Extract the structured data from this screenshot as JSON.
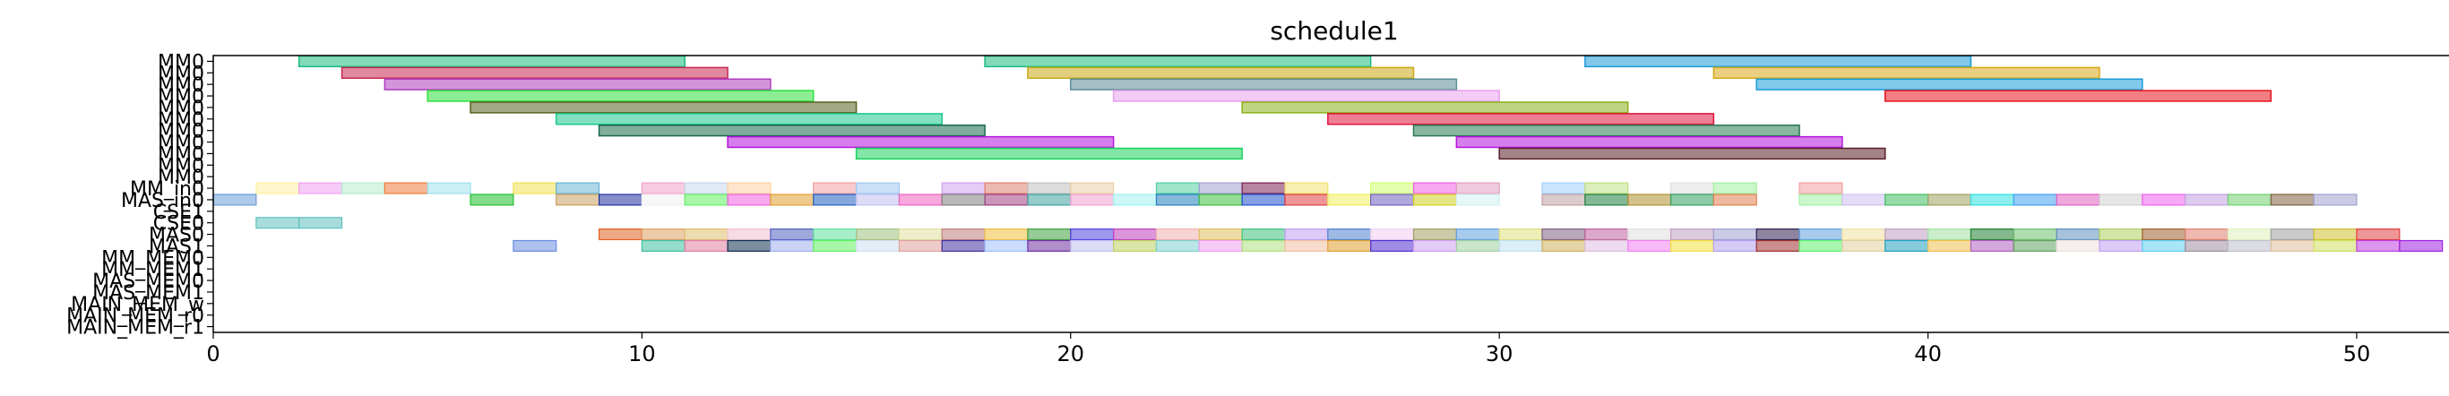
{
  "chart_data": {
    "type": "gantt",
    "title": "schedule1",
    "xlabel": "",
    "ylabel": "",
    "xlim": [
      0,
      52.3
    ],
    "x_ticks": [
      0,
      10,
      20,
      30,
      40,
      50
    ],
    "grid": false,
    "lanes": [
      "MM0",
      "MM0",
      "MM0",
      "MM0",
      "MM0",
      "MM0",
      "MM0",
      "MM0",
      "MM0",
      "MM0",
      "MM0",
      "MM_in0",
      "MAS_in0",
      "CSE1",
      "CSE0",
      "MAS0",
      "MAS1",
      "MM_MEM0",
      "MM_MEM1",
      "MAS_MEM0",
      "MAS_MEM1",
      "MAIN_MEM_w",
      "MAIN_MEM_r0",
      "MAIN_MEM_r1"
    ],
    "lane_tick_labels": [
      "MM0",
      "MM0",
      "MM0",
      "MM0",
      "MM0",
      "MM0",
      "MM0",
      "MM0",
      "MM0",
      "MM0",
      "MM0",
      "MM_in0",
      "MAS_in0",
      "CSE1",
      "CSE0",
      "MAS0",
      "MAS1",
      "MM_MEM0",
      "MM_MEM1",
      "MAS_MEM0",
      "MAS_MEM1",
      "MAIN_MEM_w",
      "MAIN_MEM_r0",
      "MAIN_MEM_r1"
    ],
    "lane_tasks": [
      [
        [
          2,
          11,
          "#1abc80"
        ],
        [
          18,
          27,
          "#1abc80"
        ],
        [
          32,
          41,
          "#1a9bd8"
        ]
      ],
      [
        [
          3,
          12,
          "#c82850"
        ],
        [
          19,
          28,
          "#c8a814"
        ],
        [
          35,
          44,
          "#d8a818"
        ]
      ],
      [
        [
          4,
          13,
          "#b03cc0"
        ],
        [
          20,
          29,
          "#5a8c96"
        ],
        [
          36,
          45,
          "#1a9cd8"
        ]
      ],
      [
        [
          5,
          14,
          "#2ce03c"
        ],
        [
          21,
          30,
          "#e8a0ee"
        ],
        [
          39,
          48,
          "#e8141e"
        ]
      ],
      [
        [
          6,
          15,
          "#586020"
        ],
        [
          24,
          33,
          "#8cb01c"
        ]
      ],
      [
        [
          8,
          17,
          "#1ac88c"
        ],
        [
          26,
          35,
          "#e0143c"
        ]
      ],
      [
        [
          9,
          18,
          "#186a4a"
        ],
        [
          28,
          37,
          "#287a50"
        ]
      ],
      [
        [
          12,
          21,
          "#b414dc"
        ],
        [
          29,
          38,
          "#b414dc"
        ]
      ],
      [
        [
          15,
          24,
          "#1ad25c"
        ],
        [
          30,
          39,
          "#5a1e28"
        ]
      ]
    ],
    "lane_strips": [
      {
        "lane": "MM_in0",
        "start": 1,
        "slots": [
          [
            1,
            "#fff0a0"
          ],
          [
            2,
            "#f0a0f0"
          ],
          [
            3,
            "#b4ecd0"
          ],
          [
            4,
            "#f07c3c"
          ],
          [
            5,
            "#a0e0f0"
          ],
          [
            7,
            "#f0e050"
          ],
          [
            8,
            "#6ab4d4"
          ],
          [
            10,
            "#f0a0c8"
          ],
          [
            11,
            "#c8d8f0"
          ],
          [
            12,
            "#ffd0a0"
          ],
          [
            14,
            "#f0a0a0"
          ],
          [
            15,
            "#a0c8f0"
          ],
          [
            17,
            "#d0a0f0"
          ],
          [
            18,
            "#e08070"
          ],
          [
            19,
            "#c0c0c0"
          ],
          [
            20,
            "#ecd0a8"
          ],
          [
            22,
            "#50d0a0"
          ],
          [
            23,
            "#a0a0d0"
          ],
          [
            24,
            "#7a2050"
          ],
          [
            25,
            "#f0e070"
          ],
          [
            27,
            "#d0ff70"
          ],
          [
            28,
            "#f060e0"
          ],
          [
            29,
            "#e0a0c0"
          ],
          [
            31,
            "#a0d0ff"
          ],
          [
            32,
            "#c0e080"
          ],
          [
            34,
            "#e0e0e0"
          ],
          [
            35,
            "#a0f0a0"
          ],
          [
            37,
            "#f0a0a0"
          ]
        ]
      },
      {
        "lane": "MAS_in0",
        "start": 0,
        "slots": [
          [
            0,
            "#6c9cd8"
          ],
          [
            6,
            "#20c030"
          ],
          [
            8,
            "#c8a060"
          ],
          [
            9,
            "#2030a0"
          ],
          [
            10,
            "#f0f0f0"
          ],
          [
            11,
            "#60f060"
          ],
          [
            12,
            "#f060e0"
          ],
          [
            13,
            "#e0a030"
          ],
          [
            14,
            "#2060c0"
          ],
          [
            15,
            "#c0c0f0"
          ],
          [
            16,
            "#f060c0"
          ],
          [
            17,
            "#808080"
          ],
          [
            18,
            "#a04080"
          ],
          [
            19,
            "#40a0a0"
          ],
          [
            20,
            "#f0a0d0"
          ],
          [
            21,
            "#a0f0f0"
          ],
          [
            22,
            "#2080c0"
          ],
          [
            23,
            "#40c040"
          ],
          [
            24,
            "#2050d0"
          ],
          [
            25,
            "#e04040"
          ],
          [
            26,
            "#f0f060"
          ],
          [
            27,
            "#7060c0"
          ],
          [
            28,
            "#d0d020"
          ],
          [
            29,
            "#d0f0f0"
          ],
          [
            31,
            "#c0a0a0"
          ],
          [
            32,
            "#208040"
          ],
          [
            33,
            "#b09030"
          ],
          [
            34,
            "#30a060"
          ],
          [
            35,
            "#e08050"
          ],
          [
            37,
            "#a0f0a0"
          ],
          [
            38,
            "#d0c0f0"
          ],
          [
            39,
            "#40c060"
          ],
          [
            40,
            "#a0a060"
          ],
          [
            41,
            "#30e0e0"
          ],
          [
            42,
            "#40a0f0"
          ],
          [
            43,
            "#e060c0"
          ],
          [
            44,
            "#d0d0d0"
          ],
          [
            45,
            "#f060f0"
          ],
          [
            46,
            "#c0a0e0"
          ],
          [
            47,
            "#70d070"
          ],
          [
            48,
            "#806040"
          ],
          [
            49,
            "#a0a0d0"
          ]
        ]
      },
      {
        "lane": "CSE0",
        "start": 1,
        "slots": [
          [
            1,
            "#60c0c0"
          ],
          [
            2,
            "#60c0c0"
          ]
        ]
      },
      {
        "lane": "MAS0",
        "start": 9,
        "slots": [
          [
            9,
            "#e06020"
          ],
          [
            10,
            "#e0a060"
          ],
          [
            11,
            "#e0c070"
          ],
          [
            12,
            "#f0c0d0"
          ],
          [
            13,
            "#5060c0"
          ],
          [
            14,
            "#60e0a0"
          ],
          [
            15,
            "#a0c080"
          ],
          [
            16,
            "#e0e0a0"
          ],
          [
            17,
            "#c08080"
          ],
          [
            18,
            "#f0c040"
          ],
          [
            19,
            "#40a040"
          ],
          [
            20,
            "#5040e0"
          ],
          [
            21,
            "#c040c0"
          ],
          [
            22,
            "#f0b0b0"
          ],
          [
            23,
            "#e0c060"
          ],
          [
            24,
            "#40c080"
          ],
          [
            25,
            "#c0a0f0"
          ],
          [
            26,
            "#5080d0"
          ],
          [
            27,
            "#f0d0f0"
          ],
          [
            28,
            "#a0a060"
          ],
          [
            29,
            "#60a0e0"
          ],
          [
            30,
            "#e0e080"
          ],
          [
            31,
            "#806080"
          ],
          [
            32,
            "#c060a0"
          ],
          [
            33,
            "#e0e0e0"
          ],
          [
            34,
            "#c0a0c0"
          ],
          [
            35,
            "#a0a0d0"
          ],
          [
            36,
            "#302050"
          ],
          [
            37,
            "#60a0e0"
          ],
          [
            38,
            "#f0e0a0"
          ],
          [
            39,
            "#c0a0c0"
          ],
          [
            40,
            "#a0e0a0"
          ],
          [
            41,
            "#208030"
          ],
          [
            42,
            "#70c070"
          ],
          [
            43,
            "#6090c0"
          ],
          [
            44,
            "#b0d060"
          ],
          [
            45,
            "#a06030"
          ],
          [
            46,
            "#e08070"
          ],
          [
            47,
            "#e0f0c0"
          ],
          [
            48,
            "#a0a0a0"
          ],
          [
            49,
            "#d0c030"
          ],
          [
            50,
            "#e04040"
          ]
        ]
      },
      {
        "lane": "MAS1",
        "start": 7,
        "slots": [
          [
            7,
            "#6a8ce0"
          ],
          [
            10,
            "#40c0a0"
          ],
          [
            11,
            "#e080a0"
          ],
          [
            12,
            "#103050"
          ],
          [
            13,
            "#a0b0f0"
          ],
          [
            14,
            "#60f060"
          ],
          [
            15,
            "#d0e0f0"
          ],
          [
            16,
            "#e0a0a0"
          ],
          [
            17,
            "#4030a0"
          ],
          [
            18,
            "#a0c0ff"
          ],
          [
            19,
            "#7030a0"
          ],
          [
            20,
            "#c0c0f0"
          ],
          [
            21,
            "#c0d060"
          ],
          [
            22,
            "#80d0d0"
          ],
          [
            23,
            "#f0a0f0"
          ],
          [
            24,
            "#b0e080"
          ],
          [
            25,
            "#f0c0a0"
          ],
          [
            26,
            "#e0a030"
          ],
          [
            27,
            "#5030d0"
          ],
          [
            28,
            "#d0a0f0"
          ],
          [
            29,
            "#a0d0a0"
          ],
          [
            30,
            "#c0e0f0"
          ],
          [
            31,
            "#d0b060"
          ],
          [
            32,
            "#e0c0e0"
          ],
          [
            33,
            "#f080f0"
          ],
          [
            34,
            "#f0e040"
          ],
          [
            35,
            "#b0a0f0"
          ],
          [
            36,
            "#a03030"
          ],
          [
            37,
            "#60f070"
          ],
          [
            38,
            "#e0d0a0"
          ],
          [
            39,
            "#20a0c0"
          ],
          [
            40,
            "#f0c050"
          ],
          [
            41,
            "#b060c0"
          ],
          [
            42,
            "#60a060"
          ],
          [
            43,
            "#f0e0e0"
          ],
          [
            44,
            "#c0a0f0"
          ],
          [
            45,
            "#60d0f0"
          ],
          [
            46,
            "#a090a0"
          ],
          [
            47,
            "#c0c0d0"
          ],
          [
            48,
            "#e0c0a0"
          ],
          [
            49,
            "#d0e060"
          ],
          [
            50,
            "#c040e0"
          ],
          [
            51,
            "#a020e0"
          ]
        ]
      }
    ]
  }
}
